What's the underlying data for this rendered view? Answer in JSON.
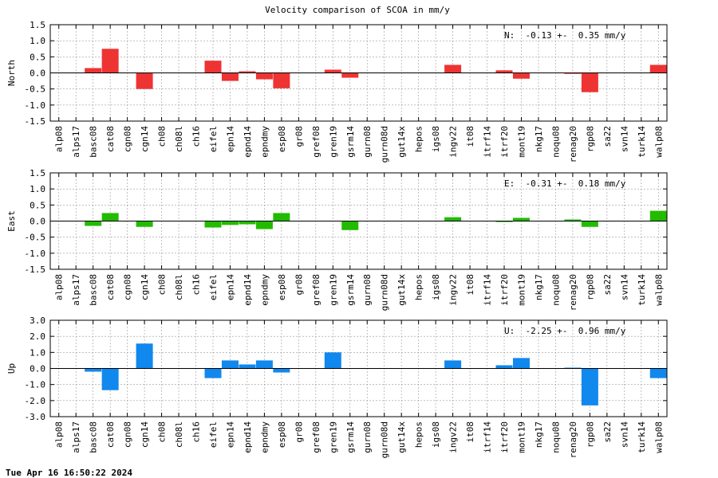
{
  "chart_data": {
    "title": "Velocity comparison of SCOA in mm/y",
    "timestamp": "Tue Apr 16 16:50:22 2024",
    "categories": [
      "alp08",
      "alps17",
      "basc08",
      "cat08",
      "cgn08",
      "cgn14",
      "ch08",
      "ch08l",
      "ch16",
      "eifel",
      "epn14",
      "epnd14",
      "epndmy",
      "esp08",
      "gr08",
      "gref08",
      "gren19",
      "gsrm14",
      "gurn08",
      "gurn08d",
      "gut14x",
      "hepos",
      "igs08",
      "ingv22",
      "it08",
      "itrf14",
      "itrf20",
      "mont19",
      "nkg17",
      "noqu08",
      "renag20",
      "rgp08",
      "sa22",
      "svn14",
      "turk14",
      "walp08"
    ],
    "panels": [
      {
        "type": "bar",
        "ylabel": "North",
        "ylim": [
          -1.5,
          1.5
        ],
        "yticks": [
          "1.5",
          "1.0",
          "0.5",
          "0.0",
          "-0.5",
          "-1.0",
          "-1.5"
        ],
        "tick_values": [
          1.5,
          1.0,
          0.5,
          0.0,
          -0.5,
          -1.0,
          -1.5
        ],
        "color": "#ee3333",
        "annotation": "N:  -0.13 +-  0.35 mm/y",
        "values": [
          null,
          null,
          0.15,
          0.75,
          null,
          -0.5,
          null,
          null,
          null,
          0.38,
          -0.25,
          0.05,
          -0.2,
          -0.48,
          null,
          null,
          0.1,
          -0.15,
          null,
          null,
          null,
          null,
          null,
          0.25,
          null,
          null,
          0.08,
          -0.18,
          null,
          null,
          -0.03,
          -0.6,
          null,
          null,
          null,
          0.25
        ]
      },
      {
        "type": "bar",
        "ylabel": "East",
        "ylim": [
          -1.5,
          1.5
        ],
        "yticks": [
          "1.5",
          "1.0",
          "0.5",
          "0.0",
          "-0.5",
          "-1.0",
          "-1.5"
        ],
        "tick_values": [
          1.5,
          1.0,
          0.5,
          0.0,
          -0.5,
          -1.0,
          -1.5
        ],
        "color": "#22bb00",
        "annotation": "E:  -0.31 +-  0.18 mm/y",
        "values": [
          null,
          null,
          -0.15,
          0.25,
          null,
          -0.18,
          null,
          null,
          null,
          -0.2,
          -0.12,
          -0.1,
          -0.25,
          0.25,
          null,
          null,
          null,
          -0.28,
          null,
          null,
          null,
          null,
          null,
          0.12,
          null,
          null,
          -0.03,
          0.1,
          null,
          null,
          0.05,
          -0.18,
          null,
          null,
          null,
          0.32
        ]
      },
      {
        "type": "bar",
        "ylabel": "Up",
        "ylim": [
          -3.0,
          3.0
        ],
        "yticks": [
          "3.0",
          "2.0",
          "1.0",
          "0.0",
          "-1.0",
          "-2.0",
          "-3.0"
        ],
        "tick_values": [
          3.0,
          2.0,
          1.0,
          0.0,
          -1.0,
          -2.0,
          -3.0
        ],
        "color": "#1188ee",
        "annotation": "U:  -2.25 +-  0.96 mm/y",
        "values": [
          null,
          null,
          -0.2,
          -1.35,
          null,
          1.55,
          null,
          null,
          null,
          -0.6,
          0.5,
          0.25,
          0.5,
          -0.25,
          null,
          null,
          1.0,
          null,
          null,
          null,
          null,
          null,
          null,
          0.5,
          null,
          null,
          0.2,
          0.65,
          null,
          null,
          0.05,
          -2.3,
          null,
          null,
          null,
          -0.6
        ]
      }
    ]
  }
}
